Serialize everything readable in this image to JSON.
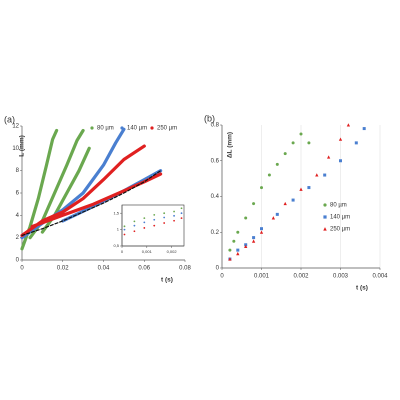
{
  "chart_data": [
    {
      "type": "line",
      "panel_label": "(a)",
      "y_label": "L (mm)",
      "x_label": "t (s)",
      "xlim": [
        0,
        0.08
      ],
      "xticks": [
        0,
        0.02,
        0.04,
        0.06,
        0.08
      ],
      "ylim": [
        0,
        12
      ],
      "yticks": [
        0,
        2,
        4,
        6,
        8,
        10,
        12
      ],
      "legend": "top-right",
      "grid": "none",
      "series": [
        {
          "name": "80 µm",
          "color": "#6aa84f",
          "marker": "circle",
          "x": [
            0,
            0.004,
            0.008,
            0.012,
            0.015,
            0.017,
            null,
            0.004,
            0.01,
            0.016,
            0.022,
            0.027,
            0.03,
            null,
            0.01,
            0.016,
            0.022,
            0.028,
            0.033
          ],
          "values": [
            1,
            3,
            5.5,
            8.5,
            10.8,
            11.6,
            null,
            2,
            3.5,
            6,
            8.5,
            10.7,
            11.6,
            null,
            2.5,
            4,
            6,
            8,
            10
          ]
        },
        {
          "name": "140 µm",
          "color": "#4a7fd0",
          "marker": "circle",
          "x": [
            0,
            0.01,
            0.02,
            0.03,
            0.04,
            0.046,
            0.05,
            null,
            0.02,
            0.035,
            0.05,
            0.06,
            0.068
          ],
          "values": [
            2,
            3.3,
            4.5,
            6,
            8.5,
            10.5,
            11.7,
            null,
            3.5,
            4.8,
            6.2,
            7.2,
            8
          ]
        },
        {
          "name": "250 µm",
          "color": "#e02020",
          "marker": "circle",
          "x": [
            0,
            0.01,
            0.02,
            0.03,
            0.04,
            0.05,
            0.06,
            null,
            0.005,
            0.02,
            0.035,
            0.05,
            0.06,
            0.068
          ],
          "values": [
            2.2,
            3.5,
            4.3,
            5.5,
            7.2,
            9,
            10.2,
            null,
            3,
            4,
            5,
            6.2,
            7,
            7.7
          ]
        },
        {
          "color": "#111111",
          "dash": true,
          "x": [
            0,
            0.01,
            0.02,
            0.03,
            0.04,
            0.05,
            0.06,
            0.068
          ],
          "values": [
            2.2,
            2.8,
            3.5,
            4.3,
            5.1,
            6,
            7,
            8
          ]
        }
      ]
    },
    {
      "type": "scatter",
      "panel_label": "(b)",
      "y_label": "ΔL (mm)",
      "x_label": "t (s)",
      "xlim": [
        0,
        0.004
      ],
      "xticks": [
        0,
        0.001,
        0.002,
        0.003,
        0.004
      ],
      "ylim": [
        0,
        0.8
      ],
      "yticks": [
        0,
        0.2,
        0.4,
        0.6,
        0.8
      ],
      "legend": "right",
      "grid": "x",
      "series": [
        {
          "name": "80 µm",
          "color": "#6aa84f",
          "marker": "circle",
          "x": [
            0.0002,
            0.0003,
            0.0004,
            0.0006,
            0.0008,
            0.001,
            0.0012,
            0.0014,
            0.0016,
            0.0018,
            0.002,
            0.0022
          ],
          "values": [
            0.1,
            0.15,
            0.2,
            0.28,
            0.36,
            0.45,
            0.52,
            0.58,
            0.64,
            0.7,
            0.75,
            0.7
          ]
        },
        {
          "name": "140 µm",
          "color": "#4a7fd0",
          "marker": "square",
          "x": [
            0.0002,
            0.0004,
            0.0006,
            0.0008,
            0.001,
            0.0014,
            0.0018,
            0.0022,
            0.0026,
            0.003,
            0.0034,
            0.0036
          ],
          "values": [
            0.05,
            0.1,
            0.13,
            0.17,
            0.22,
            0.3,
            0.38,
            0.45,
            0.52,
            0.6,
            0.7,
            0.78
          ]
        },
        {
          "name": "250 µm",
          "color": "#e02020",
          "marker": "triangle",
          "x": [
            0.0002,
            0.0004,
            0.0006,
            0.0008,
            0.001,
            0.0013,
            0.0016,
            0.002,
            0.0024,
            0.0027,
            0.003,
            0.0032
          ],
          "values": [
            0.05,
            0.08,
            0.12,
            0.15,
            0.2,
            0.28,
            0.36,
            0.44,
            0.52,
            0.62,
            0.72,
            0.8
          ]
        }
      ]
    },
    {
      "type": "scatter",
      "inset": true,
      "xlim": [
        0,
        0.0025
      ],
      "xticks": [
        0,
        {
          "value": 0.001,
          "label": "0,001"
        },
        {
          "value": 0.002,
          "label": "0,002"
        }
      ],
      "ylim": [
        0.5,
        1.75
      ],
      "yticks": [
        {
          "value": 0.5,
          "label": "0,5"
        },
        1,
        {
          "value": 1.5,
          "label": "1,5"
        }
      ],
      "series": [
        {
          "color": "#6aa84f",
          "marker": "circle",
          "x": [
            0.0001,
            0.0005,
            0.0009,
            0.0013,
            0.0017,
            0.0021,
            0.0024
          ],
          "values": [
            1.1,
            1.25,
            1.35,
            1.45,
            1.5,
            1.55,
            1.65
          ]
        },
        {
          "color": "#4a7fd0",
          "marker": "circle",
          "x": [
            0.0001,
            0.0005,
            0.0009,
            0.0013,
            0.0017,
            0.0021,
            0.0024
          ],
          "values": [
            1.0,
            1.12,
            1.22,
            1.3,
            1.37,
            1.42,
            1.5
          ]
        },
        {
          "color": "#e02020",
          "marker": "circle",
          "x": [
            0.0001,
            0.0005,
            0.0009,
            0.0013,
            0.0017,
            0.0021,
            0.0024
          ],
          "values": [
            0.85,
            0.95,
            1.05,
            1.12,
            1.2,
            1.27,
            1.35
          ]
        }
      ]
    }
  ]
}
